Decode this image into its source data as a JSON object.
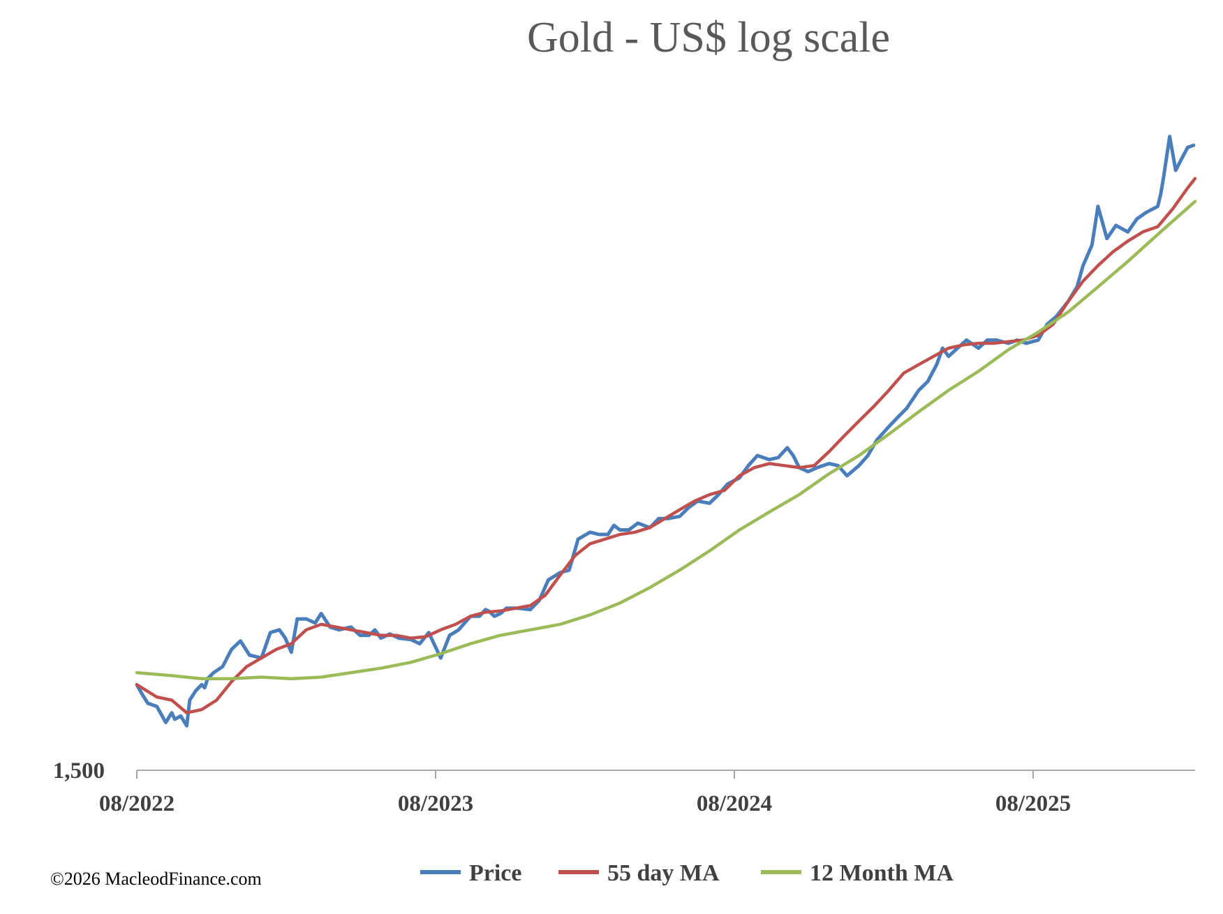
{
  "chart_data": {
    "type": "line",
    "title": "Gold - US$ log scale",
    "xlabel": "",
    "ylabel": "",
    "y_scale": "log",
    "y_tick_labels": [
      "1,500"
    ],
    "ylim": [
      1500,
      5200
    ],
    "xlim": [
      2022.583,
      2026.125
    ],
    "x_tick_labels": [
      "08/2022",
      "08/2023",
      "08/2024",
      "08/2025"
    ],
    "x_tick_positions": [
      2022.583,
      2023.583,
      2024.583,
      2025.583
    ],
    "legend": {
      "placement": "bottom-center",
      "entries": [
        "Price",
        "55 day MA",
        "12 Month MA"
      ]
    },
    "series": [
      {
        "name": "Price",
        "color": "#4a7ebb",
        "x": [
          2022.583,
          2022.6,
          2022.62,
          2022.65,
          2022.68,
          2022.7,
          2022.71,
          2022.73,
          2022.75,
          2022.76,
          2022.78,
          2022.8,
          2022.81,
          2022.82,
          2022.84,
          2022.87,
          2022.9,
          2022.93,
          2022.96,
          2023.0,
          2023.03,
          2023.06,
          2023.08,
          2023.1,
          2023.12,
          2023.15,
          2023.18,
          2023.2,
          2023.23,
          2023.26,
          2023.3,
          2023.33,
          2023.36,
          2023.38,
          2023.4,
          2023.43,
          2023.46,
          2023.5,
          2023.53,
          2023.56,
          2023.6,
          2023.63,
          2023.66,
          2023.7,
          2023.73,
          2023.75,
          2023.76,
          2023.78,
          2023.8,
          2023.82,
          2023.86,
          2023.9,
          2023.93,
          2023.96,
          2024.0,
          2024.03,
          2024.06,
          2024.1,
          2024.13,
          2024.16,
          2024.18,
          2024.2,
          2024.23,
          2024.26,
          2024.3,
          2024.33,
          2024.36,
          2024.4,
          2024.43,
          2024.46,
          2024.5,
          2024.53,
          2024.56,
          2024.6,
          2024.63,
          2024.66,
          2024.7,
          2024.73,
          2024.76,
          2024.78,
          2024.8,
          2024.83,
          2024.86,
          2024.9,
          2024.93,
          2024.96,
          2025.0,
          2025.03,
          2025.06,
          2025.1,
          2025.13,
          2025.16,
          2025.2,
          2025.23,
          2025.26,
          2025.28,
          2025.3,
          2025.33,
          2025.36,
          2025.4,
          2025.43,
          2025.46,
          2025.5,
          2025.53,
          2025.56,
          2025.6,
          2025.63,
          2025.66,
          2025.7,
          2025.73,
          2025.75,
          2025.78,
          2025.8,
          2025.83,
          2025.86,
          2025.9,
          2025.93,
          2025.96,
          2026.0,
          2026.01,
          2026.02,
          2026.04,
          2026.06,
          2026.08,
          2026.1,
          2026.12
        ],
        "values": [
          1760,
          1730,
          1700,
          1690,
          1640,
          1670,
          1650,
          1660,
          1630,
          1710,
          1740,
          1760,
          1750,
          1780,
          1800,
          1820,
          1880,
          1910,
          1860,
          1850,
          1940,
          1950,
          1920,
          1870,
          1990,
          1990,
          1975,
          2010,
          1960,
          1950,
          1960,
          1930,
          1930,
          1950,
          1920,
          1935,
          1920,
          1915,
          1900,
          1940,
          1850,
          1930,
          1950,
          2000,
          2000,
          2025,
          2020,
          2000,
          2010,
          2030,
          2030,
          2025,
          2060,
          2140,
          2170,
          2180,
          2310,
          2340,
          2330,
          2330,
          2370,
          2350,
          2350,
          2380,
          2360,
          2400,
          2400,
          2410,
          2450,
          2480,
          2470,
          2510,
          2560,
          2590,
          2650,
          2700,
          2680,
          2690,
          2740,
          2700,
          2640,
          2620,
          2640,
          2660,
          2650,
          2600,
          2650,
          2700,
          2780,
          2850,
          2900,
          2950,
          3050,
          3100,
          3200,
          3300,
          3250,
          3300,
          3350,
          3300,
          3350,
          3350,
          3330,
          3350,
          3330,
          3350,
          3450,
          3500,
          3600,
          3700,
          3850,
          4000,
          4300,
          4050,
          4150,
          4100,
          4200,
          4250,
          4300,
          4400,
          4550,
          4900,
          4600,
          4700,
          4800,
          4820
        ]
      },
      {
        "name": "55 day MA",
        "color": "#c0504d",
        "x": [
          2022.583,
          2022.65,
          2022.7,
          2022.75,
          2022.8,
          2022.85,
          2022.9,
          2022.95,
          2023.0,
          2023.05,
          2023.1,
          2023.15,
          2023.2,
          2023.25,
          2023.3,
          2023.35,
          2023.4,
          2023.45,
          2023.5,
          2023.55,
          2023.6,
          2023.65,
          2023.7,
          2023.75,
          2023.8,
          2023.85,
          2023.9,
          2023.95,
          2024.0,
          2024.05,
          2024.1,
          2024.15,
          2024.2,
          2024.25,
          2024.3,
          2024.35,
          2024.4,
          2024.45,
          2024.5,
          2024.55,
          2024.6,
          2024.65,
          2024.7,
          2024.75,
          2024.8,
          2024.85,
          2024.9,
          2024.95,
          2025.0,
          2025.05,
          2025.1,
          2025.15,
          2025.2,
          2025.25,
          2025.3,
          2025.35,
          2025.4,
          2025.45,
          2025.5,
          2025.55,
          2025.6,
          2025.65,
          2025.7,
          2025.75,
          2025.8,
          2025.85,
          2025.9,
          2025.95,
          2026.0,
          2026.05,
          2026.1,
          2026.125
        ],
        "values": [
          1760,
          1720,
          1710,
          1670,
          1680,
          1710,
          1770,
          1820,
          1850,
          1880,
          1900,
          1950,
          1970,
          1960,
          1950,
          1940,
          1930,
          1930,
          1920,
          1925,
          1950,
          1970,
          2000,
          2015,
          2020,
          2030,
          2040,
          2080,
          2160,
          2240,
          2290,
          2310,
          2330,
          2340,
          2360,
          2400,
          2440,
          2480,
          2510,
          2530,
          2600,
          2640,
          2660,
          2650,
          2640,
          2650,
          2720,
          2800,
          2880,
          2960,
          3050,
          3150,
          3200,
          3250,
          3300,
          3320,
          3330,
          3330,
          3340,
          3350,
          3380,
          3450,
          3600,
          3740,
          3850,
          3950,
          4030,
          4100,
          4140,
          4280,
          4450,
          4530
        ]
      },
      {
        "name": "12 Month MA",
        "color": "#9bbb59",
        "x": [
          2022.583,
          2022.7,
          2022.8,
          2022.9,
          2023.0,
          2023.1,
          2023.2,
          2023.3,
          2023.4,
          2023.5,
          2023.6,
          2023.7,
          2023.8,
          2023.9,
          2024.0,
          2024.1,
          2024.2,
          2024.3,
          2024.4,
          2024.5,
          2024.6,
          2024.7,
          2024.8,
          2024.9,
          2025.0,
          2025.1,
          2025.2,
          2025.3,
          2025.4,
          2025.5,
          2025.6,
          2025.7,
          2025.8,
          2025.9,
          2026.0,
          2026.125
        ],
        "values": [
          1800,
          1790,
          1780,
          1780,
          1785,
          1780,
          1785,
          1800,
          1815,
          1835,
          1865,
          1900,
          1930,
          1950,
          1970,
          2005,
          2050,
          2110,
          2180,
          2260,
          2350,
          2430,
          2510,
          2610,
          2700,
          2810,
          2930,
          3050,
          3160,
          3290,
          3400,
          3530,
          3700,
          3880,
          4080,
          4340
        ]
      }
    ]
  },
  "copyright": "©2026 MacleodFinance.com"
}
